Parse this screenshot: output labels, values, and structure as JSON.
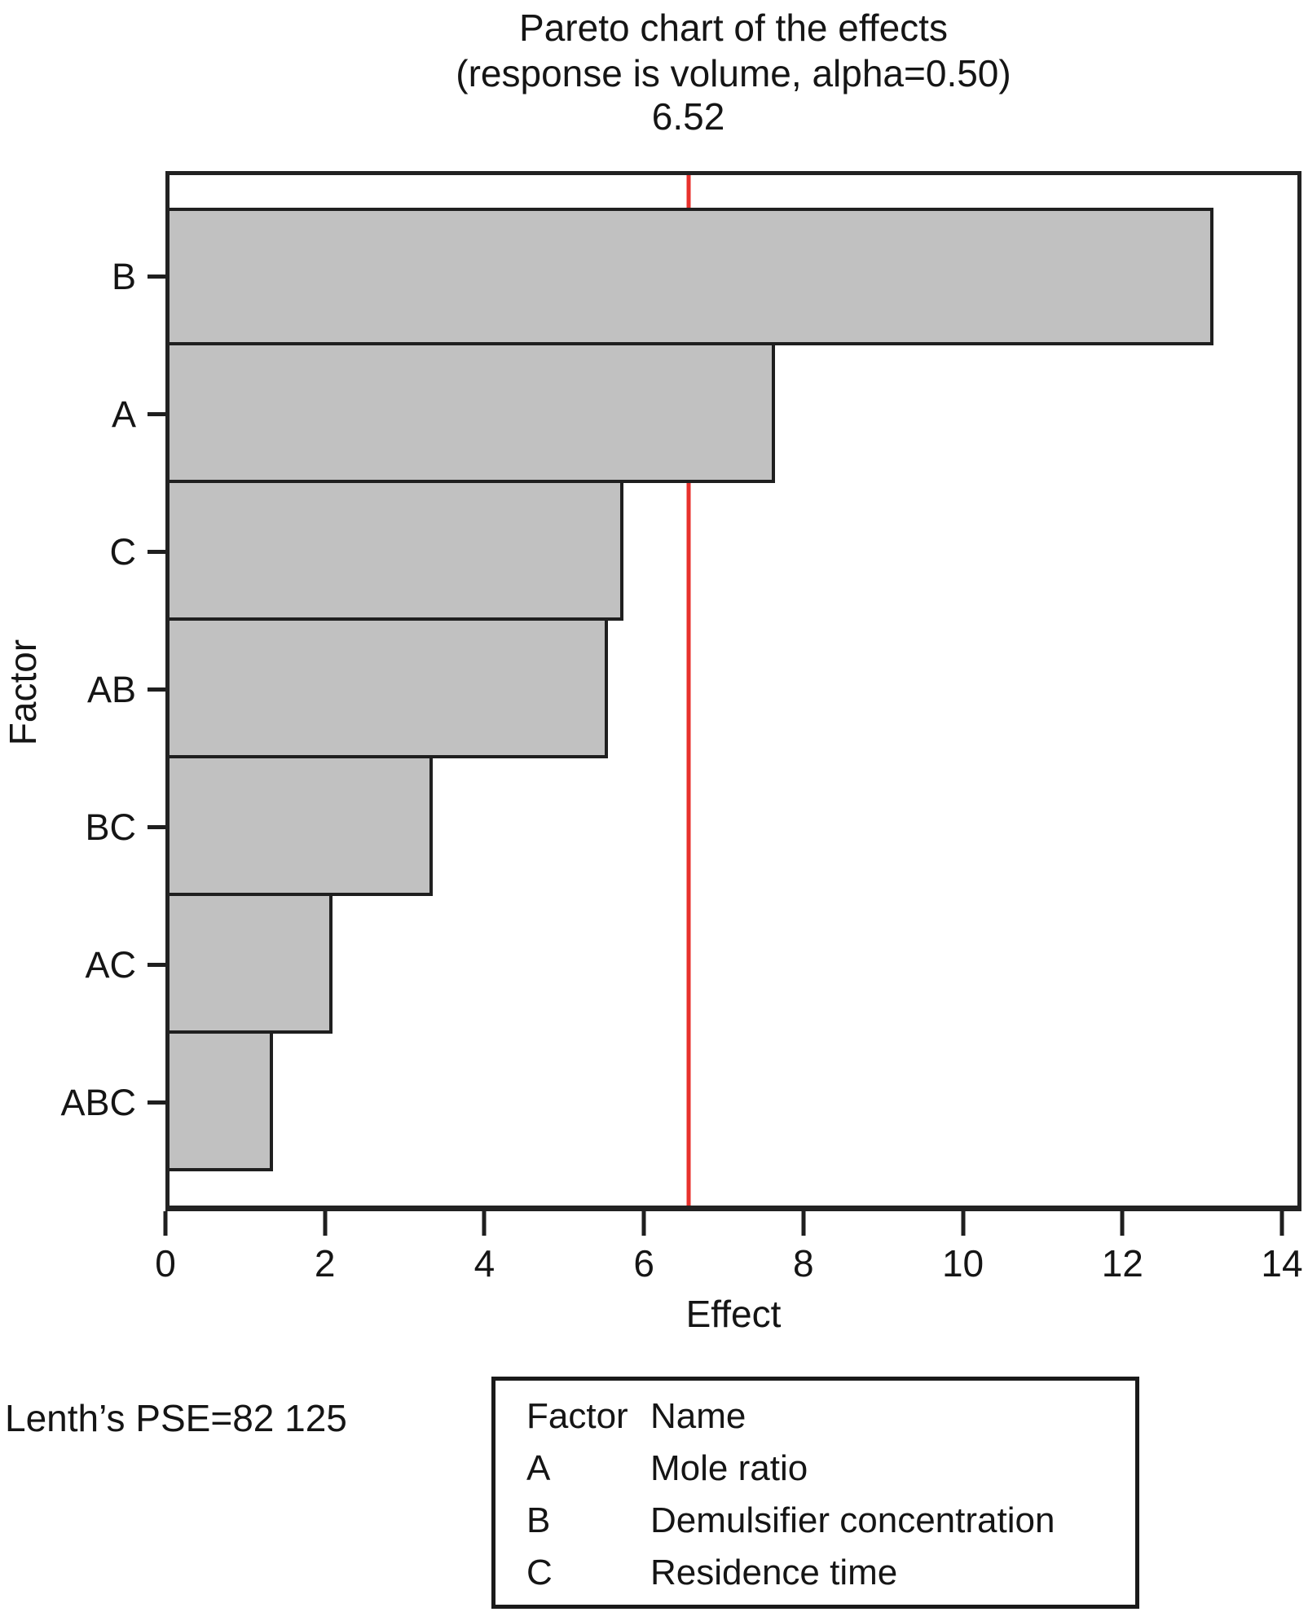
{
  "title": {
    "line1": "Pareto chart of the effects",
    "line2": "(response is volume, alpha=0.50)"
  },
  "chart_data": {
    "type": "bar",
    "orientation": "horizontal",
    "categories": [
      "B",
      "A",
      "C",
      "AB",
      "BC",
      "AC",
      "ABC"
    ],
    "values": [
      13.1,
      7.6,
      5.7,
      5.5,
      3.3,
      2.05,
      1.3
    ],
    "reference_line": {
      "value": 6.52,
      "label": "6.52",
      "color": "#e8312c"
    },
    "title": "Pareto chart of the effects (response is volume, alpha=0.50)",
    "xlabel": "Effect",
    "ylabel": "Factor",
    "xlim": [
      0,
      14
    ],
    "xticks": [
      0,
      2,
      4,
      6,
      8,
      10,
      12,
      14
    ],
    "grid": "off",
    "bar_fill": "#c1c1c1",
    "bar_border": "#1f1f1f"
  },
  "footnote": "Lenth’s PSE=82 125",
  "legend": {
    "header": {
      "factor": "Factor",
      "name": "Name"
    },
    "rows": [
      {
        "factor": "A",
        "name": "Mole ratio"
      },
      {
        "factor": "B",
        "name": "Demulsifier concentration"
      },
      {
        "factor": "C",
        "name": "Residence time"
      }
    ]
  }
}
